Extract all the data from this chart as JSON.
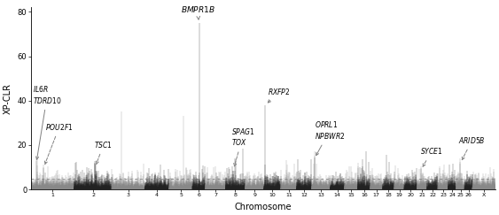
{
  "title": "",
  "xlabel": "Chromosome",
  "ylabel": "XP-CLR",
  "ylim": [
    0,
    82
  ],
  "yticks": [
    0,
    20,
    40,
    60,
    80
  ],
  "chromosomes": [
    "1",
    "2",
    "3",
    "4",
    "5",
    "6",
    "7",
    "8",
    "9",
    "10",
    "11",
    "12",
    "13",
    "14",
    "15",
    "16",
    "17",
    "18",
    "19",
    "20",
    "21",
    "22",
    "23",
    "24",
    "25",
    "26",
    "X"
  ],
  "threshold": 5.0,
  "color_odd": "#888888",
  "color_even": "#222222",
  "background": "#ffffff",
  "seed": 12345,
  "chr_sizes": [
    280,
    240,
    210,
    155,
    150,
    80,
    130,
    125,
    120,
    110,
    100,
    95,
    120,
    90,
    85,
    80,
    78,
    75,
    65,
    80,
    65,
    70,
    65,
    50,
    55,
    50,
    145
  ]
}
